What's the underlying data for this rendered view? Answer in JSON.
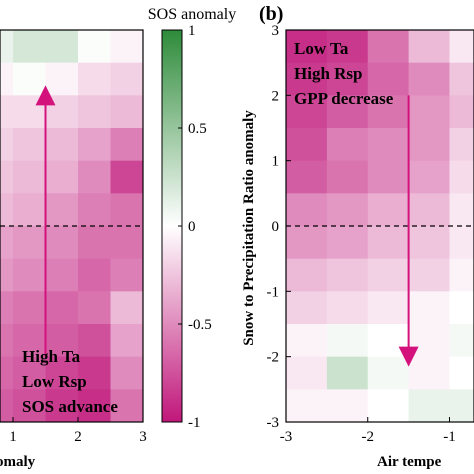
{
  "colorbar": {
    "title": "SOS anomaly",
    "ticks": [
      1,
      0.5,
      0,
      -0.5,
      -1
    ],
    "tick_labels": [
      "1",
      "0.5",
      "0",
      "-0.5",
      "-1"
    ],
    "colors": {
      "positive": "#2e8b3a",
      "zero": "#ffffff",
      "negative": "#c0177a"
    }
  },
  "chart_data": [
    {
      "type": "heatmap",
      "panel_label": "",
      "xlabel": "omaly",
      "ylabel": "",
      "x_ticks": [
        1,
        2,
        3
      ],
      "x_tick_labels": [
        "1",
        "2",
        "3"
      ],
      "x_range": [
        0.8,
        3.0
      ],
      "y_range": [
        -3,
        3
      ],
      "x_edges": [
        0.8,
        1.0,
        1.5,
        2.0,
        2.5,
        3.0
      ],
      "y_edges": [
        -3,
        -2.5,
        -2,
        -1.5,
        -1,
        -0.5,
        0,
        0.5,
        1,
        1.5,
        2,
        2.5,
        3
      ],
      "cells_rows_top_to_bottom": [
        [
          0.1,
          0.2,
          0.2,
          0.02,
          -0.05
        ],
        [
          -0.05,
          0.02,
          -0.05,
          -0.15,
          -0.2
        ],
        [
          -0.15,
          -0.15,
          -0.2,
          -0.25,
          -0.3
        ],
        [
          -0.2,
          -0.25,
          -0.3,
          -0.4,
          -0.55
        ],
        [
          -0.25,
          -0.3,
          -0.35,
          -0.5,
          -0.8
        ],
        [
          -0.3,
          -0.35,
          -0.45,
          -0.55,
          -0.6
        ],
        [
          -0.4,
          -0.45,
          -0.5,
          -0.6,
          -0.6
        ],
        [
          -0.45,
          -0.5,
          -0.55,
          -0.65,
          -0.55
        ],
        [
          -0.55,
          -0.6,
          -0.65,
          -0.6,
          -0.3
        ],
        [
          -0.6,
          -0.65,
          -0.7,
          -0.75,
          -0.4
        ],
        [
          -0.65,
          -0.7,
          -0.8,
          -0.85,
          -0.5
        ],
        [
          -0.7,
          -0.75,
          -0.85,
          -0.9,
          -0.6
        ]
      ],
      "dashed_hline_y": 0,
      "arrow": {
        "from": [
          1.5,
          -2.0
        ],
        "to": [
          1.5,
          2.0
        ]
      },
      "annotation_lines": [
        "High Ta",
        "Low Rsp",
        "SOS advance"
      ]
    },
    {
      "type": "heatmap",
      "panel_label": "(b)",
      "xlabel": "Air tempe",
      "ylabel": "Snow to Precipitation Ratio anomaly",
      "x_ticks": [
        -3,
        -2,
        -1
      ],
      "x_tick_labels": [
        "-3",
        "-2",
        "-1"
      ],
      "x_range": [
        -3,
        -0.7
      ],
      "y_ticks": [
        3,
        2,
        1,
        0,
        -1,
        -2,
        -3
      ],
      "y_tick_labels": [
        "3",
        "2",
        "1",
        "0",
        "-1",
        "-2",
        "-3"
      ],
      "y_range": [
        -3,
        3
      ],
      "x_edges": [
        -3,
        -2.5,
        -2,
        -1.5,
        -1,
        -0.7
      ],
      "y_edges": [
        -3,
        -2.5,
        -2,
        -1.5,
        -1,
        -0.5,
        0,
        0.5,
        1,
        1.5,
        2,
        2.5,
        3
      ],
      "cells_rows_top_to_bottom": [
        [
          -0.9,
          -0.85,
          -0.6,
          -0.3,
          -0.1
        ],
        [
          -0.85,
          -0.8,
          -0.65,
          -0.5,
          -0.25
        ],
        [
          -0.8,
          -0.7,
          -0.6,
          -0.45,
          -0.3
        ],
        [
          -0.75,
          -0.55,
          -0.5,
          -0.45,
          -0.2
        ],
        [
          -0.7,
          -0.6,
          -0.5,
          -0.4,
          -0.15
        ],
        [
          -0.5,
          -0.45,
          -0.35,
          -0.3,
          -0.1
        ],
        [
          -0.45,
          -0.4,
          -0.3,
          -0.25,
          -0.1
        ],
        [
          -0.3,
          -0.25,
          -0.2,
          -0.2,
          -0.05
        ],
        [
          -0.2,
          -0.15,
          -0.1,
          -0.05,
          0.0
        ],
        [
          -0.05,
          0.05,
          0.0,
          -0.05,
          0.05
        ],
        [
          -0.1,
          0.25,
          0.05,
          -0.05,
          0.0
        ],
        [
          -0.05,
          -0.05,
          0.0,
          0.1,
          0.1
        ]
      ],
      "dashed_hline_y": 0,
      "arrow": {
        "from": [
          -1.5,
          2.0
        ],
        "to": [
          -1.5,
          -2.0
        ]
      },
      "annotation_lines": [
        "Low Ta",
        "High Rsp",
        "GPP decrease"
      ]
    }
  ]
}
